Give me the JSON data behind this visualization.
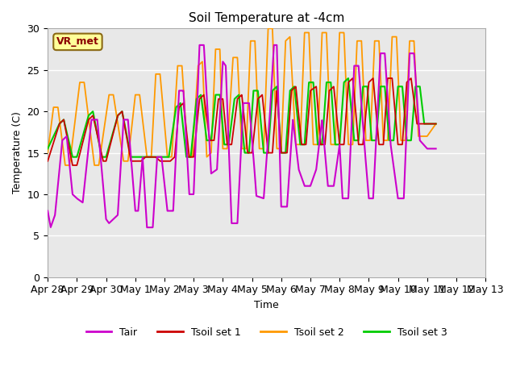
{
  "title": "Soil Temperature at -4cm",
  "xlabel": "Time",
  "ylabel": "Temperature (C)",
  "ylim": [
    0,
    30
  ],
  "background_color": "#e8e8e8",
  "annotation_text": "VR_met",
  "annotation_bg": "#ffff99",
  "annotation_border": "#8b6914",
  "annotation_text_color": "#8b0000",
  "grid_color": "#ffffff",
  "series_colors": {
    "Tair": "#cc00cc",
    "Tsoil1": "#cc0000",
    "Tsoil2": "#ff9900",
    "Tsoil3": "#00cc00"
  },
  "legend_labels": [
    "Tair",
    "Tsoil set 1",
    "Tsoil set 2",
    "Tsoil set 3"
  ],
  "xtick_labels": [
    "Apr 28",
    "Apr 29",
    "Apr 30",
    "May 1",
    "May 2",
    "May 3",
    "May 4",
    "May 5",
    "May 6",
    "May 7",
    "May 8",
    "May 9",
    "May 10",
    "May 11",
    "May 12",
    "May 13"
  ],
  "xtick_positions": [
    0,
    1,
    2,
    3,
    4,
    5,
    6,
    7,
    8,
    9,
    10,
    11,
    12,
    13,
    14,
    15
  ],
  "tair_pts": [
    [
      0,
      8.0
    ],
    [
      0.1,
      6.0
    ],
    [
      0.25,
      7.5
    ],
    [
      0.5,
      16.5
    ],
    [
      0.65,
      17.0
    ],
    [
      0.85,
      10.0
    ],
    [
      1.0,
      9.5
    ],
    [
      1.2,
      9.0
    ],
    [
      1.5,
      19.0
    ],
    [
      1.7,
      19.0
    ],
    [
      2.0,
      7.0
    ],
    [
      2.1,
      6.5
    ],
    [
      2.4,
      7.5
    ],
    [
      2.6,
      19.0
    ],
    [
      2.75,
      19.0
    ],
    [
      3.0,
      8.0
    ],
    [
      3.1,
      8.0
    ],
    [
      3.25,
      14.5
    ],
    [
      3.4,
      6.0
    ],
    [
      3.6,
      6.0
    ],
    [
      3.75,
      14.5
    ],
    [
      3.9,
      14.5
    ],
    [
      4.1,
      8.0
    ],
    [
      4.3,
      8.0
    ],
    [
      4.5,
      22.5
    ],
    [
      4.65,
      22.5
    ],
    [
      4.85,
      10.0
    ],
    [
      5.0,
      10.0
    ],
    [
      5.2,
      28.0
    ],
    [
      5.35,
      28.0
    ],
    [
      5.6,
      12.5
    ],
    [
      5.8,
      13.0
    ],
    [
      6.0,
      26.0
    ],
    [
      6.1,
      25.5
    ],
    [
      6.3,
      6.5
    ],
    [
      6.5,
      6.5
    ],
    [
      6.7,
      21.0
    ],
    [
      6.9,
      21.0
    ],
    [
      7.05,
      14.5
    ],
    [
      7.15,
      9.8
    ],
    [
      7.4,
      9.5
    ],
    [
      7.6,
      19.0
    ],
    [
      7.75,
      28.0
    ],
    [
      7.85,
      28.0
    ],
    [
      8.0,
      8.5
    ],
    [
      8.2,
      8.5
    ],
    [
      8.4,
      19.0
    ],
    [
      8.6,
      13.0
    ],
    [
      8.8,
      11.0
    ],
    [
      9.0,
      11.0
    ],
    [
      9.2,
      13.0
    ],
    [
      9.4,
      19.0
    ],
    [
      9.6,
      11.0
    ],
    [
      9.8,
      11.0
    ],
    [
      10.0,
      16.0
    ],
    [
      10.1,
      9.5
    ],
    [
      10.3,
      9.5
    ],
    [
      10.5,
      25.5
    ],
    [
      10.65,
      25.5
    ],
    [
      10.85,
      16.0
    ],
    [
      11.0,
      9.5
    ],
    [
      11.15,
      9.5
    ],
    [
      11.4,
      27.0
    ],
    [
      11.55,
      27.0
    ],
    [
      11.75,
      16.0
    ],
    [
      12.0,
      9.5
    ],
    [
      12.2,
      9.5
    ],
    [
      12.4,
      27.0
    ],
    [
      12.55,
      27.0
    ],
    [
      12.75,
      16.5
    ],
    [
      13.0,
      15.5
    ],
    [
      13.3,
      15.5
    ]
  ],
  "tsoil1_pts": [
    [
      0,
      14.0
    ],
    [
      0.4,
      18.5
    ],
    [
      0.55,
      19.0
    ],
    [
      0.85,
      13.5
    ],
    [
      1.0,
      13.5
    ],
    [
      1.4,
      19.0
    ],
    [
      1.55,
      19.5
    ],
    [
      1.9,
      14.0
    ],
    [
      2.0,
      14.0
    ],
    [
      2.4,
      19.5
    ],
    [
      2.55,
      20.0
    ],
    [
      2.85,
      14.0
    ],
    [
      3.0,
      14.0
    ],
    [
      3.2,
      14.0
    ],
    [
      3.35,
      14.5
    ],
    [
      3.5,
      14.5
    ],
    [
      3.7,
      14.5
    ],
    [
      3.85,
      14.0
    ],
    [
      4.0,
      14.0
    ],
    [
      4.2,
      14.0
    ],
    [
      4.35,
      14.5
    ],
    [
      4.5,
      20.5
    ],
    [
      4.65,
      21.0
    ],
    [
      4.85,
      14.5
    ],
    [
      5.0,
      14.5
    ],
    [
      5.2,
      21.5
    ],
    [
      5.35,
      22.0
    ],
    [
      5.55,
      16.5
    ],
    [
      5.7,
      16.5
    ],
    [
      5.85,
      21.5
    ],
    [
      6.0,
      21.5
    ],
    [
      6.15,
      16.0
    ],
    [
      6.3,
      16.0
    ],
    [
      6.5,
      21.5
    ],
    [
      6.65,
      22.0
    ],
    [
      6.85,
      15.0
    ],
    [
      7.0,
      15.0
    ],
    [
      7.2,
      21.5
    ],
    [
      7.35,
      22.0
    ],
    [
      7.55,
      15.0
    ],
    [
      7.7,
      15.0
    ],
    [
      7.85,
      22.5
    ],
    [
      8.0,
      15.0
    ],
    [
      8.2,
      15.0
    ],
    [
      8.35,
      22.5
    ],
    [
      8.5,
      23.0
    ],
    [
      8.7,
      16.0
    ],
    [
      8.85,
      16.0
    ],
    [
      9.0,
      22.5
    ],
    [
      9.2,
      23.0
    ],
    [
      9.35,
      16.0
    ],
    [
      9.5,
      16.0
    ],
    [
      9.65,
      22.5
    ],
    [
      9.8,
      23.0
    ],
    [
      10.0,
      16.0
    ],
    [
      10.15,
      16.0
    ],
    [
      10.3,
      23.5
    ],
    [
      10.45,
      24.0
    ],
    [
      10.65,
      16.0
    ],
    [
      10.8,
      16.0
    ],
    [
      11.0,
      23.5
    ],
    [
      11.15,
      24.0
    ],
    [
      11.35,
      16.0
    ],
    [
      11.5,
      16.0
    ],
    [
      11.65,
      24.0
    ],
    [
      11.8,
      24.0
    ],
    [
      12.0,
      16.0
    ],
    [
      12.15,
      16.0
    ],
    [
      12.3,
      23.5
    ],
    [
      12.45,
      24.0
    ],
    [
      12.65,
      18.5
    ],
    [
      12.8,
      18.5
    ],
    [
      13.0,
      18.5
    ],
    [
      13.3,
      18.5
    ]
  ],
  "tsoil2_pts": [
    [
      0,
      15.0
    ],
    [
      0.2,
      20.5
    ],
    [
      0.35,
      20.5
    ],
    [
      0.6,
      13.5
    ],
    [
      0.75,
      13.5
    ],
    [
      1.1,
      23.5
    ],
    [
      1.25,
      23.5
    ],
    [
      1.6,
      13.5
    ],
    [
      1.75,
      13.5
    ],
    [
      2.1,
      22.0
    ],
    [
      2.25,
      22.0
    ],
    [
      2.6,
      14.0
    ],
    [
      2.75,
      14.0
    ],
    [
      3.0,
      22.0
    ],
    [
      3.15,
      22.0
    ],
    [
      3.4,
      14.5
    ],
    [
      3.55,
      14.5
    ],
    [
      3.7,
      24.5
    ],
    [
      3.85,
      24.5
    ],
    [
      4.1,
      14.5
    ],
    [
      4.25,
      14.5
    ],
    [
      4.45,
      25.5
    ],
    [
      4.6,
      25.5
    ],
    [
      4.8,
      14.5
    ],
    [
      4.95,
      14.5
    ],
    [
      5.15,
      25.5
    ],
    [
      5.3,
      26.0
    ],
    [
      5.45,
      14.5
    ],
    [
      5.6,
      15.0
    ],
    [
      5.75,
      27.5
    ],
    [
      5.9,
      27.5
    ],
    [
      6.0,
      15.5
    ],
    [
      6.15,
      15.5
    ],
    [
      6.35,
      26.5
    ],
    [
      6.5,
      26.5
    ],
    [
      6.65,
      15.5
    ],
    [
      6.8,
      15.5
    ],
    [
      6.95,
      28.5
    ],
    [
      7.1,
      28.5
    ],
    [
      7.25,
      15.5
    ],
    [
      7.4,
      15.5
    ],
    [
      7.55,
      30.0
    ],
    [
      7.7,
      30.0
    ],
    [
      7.85,
      15.5
    ],
    [
      8.0,
      15.5
    ],
    [
      8.15,
      28.5
    ],
    [
      8.3,
      29.0
    ],
    [
      8.5,
      16.0
    ],
    [
      8.65,
      16.0
    ],
    [
      8.8,
      29.5
    ],
    [
      8.95,
      29.5
    ],
    [
      9.1,
      16.0
    ],
    [
      9.25,
      16.0
    ],
    [
      9.4,
      29.5
    ],
    [
      9.55,
      29.5
    ],
    [
      9.7,
      16.0
    ],
    [
      9.85,
      16.0
    ],
    [
      10.0,
      29.5
    ],
    [
      10.15,
      29.5
    ],
    [
      10.3,
      16.0
    ],
    [
      10.45,
      16.0
    ],
    [
      10.6,
      28.5
    ],
    [
      10.75,
      28.5
    ],
    [
      10.9,
      16.5
    ],
    [
      11.05,
      16.5
    ],
    [
      11.2,
      28.5
    ],
    [
      11.35,
      28.5
    ],
    [
      11.5,
      16.5
    ],
    [
      11.65,
      16.5
    ],
    [
      11.8,
      29.0
    ],
    [
      11.95,
      29.0
    ],
    [
      12.1,
      16.5
    ],
    [
      12.25,
      16.5
    ],
    [
      12.4,
      28.5
    ],
    [
      12.55,
      28.5
    ],
    [
      12.7,
      17.0
    ],
    [
      12.85,
      17.0
    ],
    [
      13.0,
      17.0
    ],
    [
      13.3,
      18.5
    ]
  ],
  "tsoil3_pts": [
    [
      0,
      15.5
    ],
    [
      0.4,
      18.5
    ],
    [
      0.55,
      19.0
    ],
    [
      0.85,
      14.5
    ],
    [
      1.0,
      14.5
    ],
    [
      1.4,
      19.5
    ],
    [
      1.55,
      20.0
    ],
    [
      1.85,
      14.5
    ],
    [
      2.0,
      14.5
    ],
    [
      2.4,
      19.5
    ],
    [
      2.55,
      20.0
    ],
    [
      2.85,
      14.5
    ],
    [
      3.0,
      14.5
    ],
    [
      3.2,
      14.5
    ],
    [
      3.4,
      14.5
    ],
    [
      3.6,
      14.5
    ],
    [
      3.8,
      14.5
    ],
    [
      4.0,
      14.5
    ],
    [
      4.15,
      14.5
    ],
    [
      4.4,
      20.5
    ],
    [
      4.55,
      21.0
    ],
    [
      4.75,
      14.5
    ],
    [
      4.9,
      14.5
    ],
    [
      5.1,
      21.5
    ],
    [
      5.25,
      22.0
    ],
    [
      5.45,
      16.5
    ],
    [
      5.6,
      16.5
    ],
    [
      5.75,
      22.0
    ],
    [
      5.9,
      22.0
    ],
    [
      6.05,
      16.0
    ],
    [
      6.2,
      16.0
    ],
    [
      6.4,
      21.5
    ],
    [
      6.55,
      22.0
    ],
    [
      6.75,
      15.0
    ],
    [
      6.9,
      15.0
    ],
    [
      7.05,
      22.5
    ],
    [
      7.2,
      22.5
    ],
    [
      7.4,
      15.0
    ],
    [
      7.55,
      15.0
    ],
    [
      7.7,
      22.5
    ],
    [
      7.85,
      23.0
    ],
    [
      8.0,
      15.0
    ],
    [
      8.15,
      15.0
    ],
    [
      8.3,
      22.5
    ],
    [
      8.45,
      23.0
    ],
    [
      8.65,
      16.0
    ],
    [
      8.8,
      16.0
    ],
    [
      8.95,
      23.5
    ],
    [
      9.1,
      23.5
    ],
    [
      9.25,
      16.0
    ],
    [
      9.4,
      16.0
    ],
    [
      9.55,
      23.5
    ],
    [
      9.7,
      23.5
    ],
    [
      9.85,
      16.0
    ],
    [
      10.0,
      16.0
    ],
    [
      10.15,
      23.5
    ],
    [
      10.3,
      24.0
    ],
    [
      10.5,
      16.5
    ],
    [
      10.65,
      16.5
    ],
    [
      10.8,
      23.0
    ],
    [
      10.95,
      23.0
    ],
    [
      11.1,
      16.5
    ],
    [
      11.25,
      16.5
    ],
    [
      11.4,
      23.0
    ],
    [
      11.55,
      23.0
    ],
    [
      11.7,
      16.5
    ],
    [
      11.85,
      16.5
    ],
    [
      12.0,
      23.0
    ],
    [
      12.15,
      23.0
    ],
    [
      12.3,
      16.5
    ],
    [
      12.45,
      16.5
    ],
    [
      12.6,
      23.0
    ],
    [
      12.75,
      23.0
    ],
    [
      12.9,
      18.5
    ],
    [
      13.0,
      18.5
    ],
    [
      13.3,
      18.5
    ]
  ]
}
